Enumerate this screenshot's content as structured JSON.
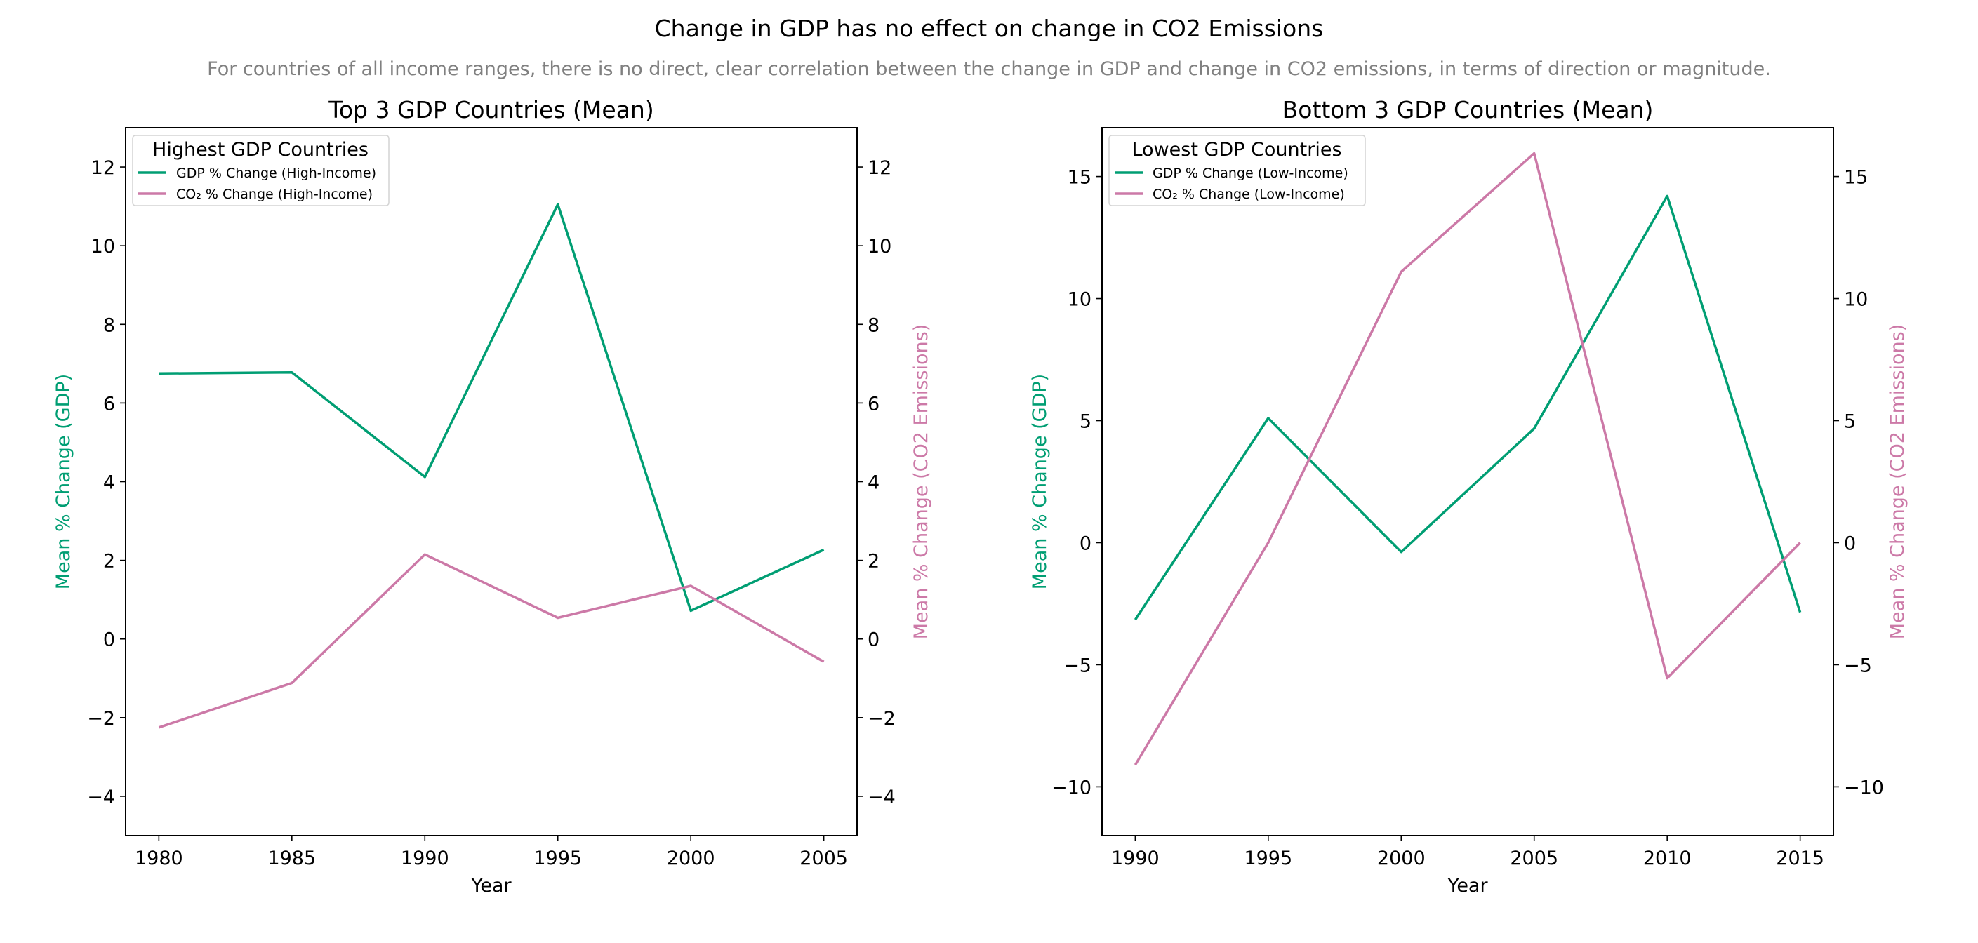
{
  "figure": {
    "title": "Change in GDP has no effect on change in CO2 Emissions",
    "subtitle": "For countries of all income ranges, there is no direct, clear correlation between the change in GDP and change in CO2 emissions, in terms of direction or magnitude."
  },
  "colors": {
    "gdp": "#009E73",
    "co2": "#CC79A7",
    "axis": "#000000",
    "subtitle": "#808080"
  },
  "chart_data": [
    {
      "type": "line",
      "title": "Top 3 GDP Countries (Mean)",
      "xlabel": "Year",
      "ylabel_left": "Mean % Change (GDP)",
      "ylabel_right": "Mean % Change (CO2 Emissions)",
      "x": [
        1980,
        1985,
        1990,
        1995,
        2000,
        2005
      ],
      "xlim": [
        1978.75,
        2006.25
      ],
      "ylim_left": [
        -5,
        13
      ],
      "ylim_right": [
        -5,
        13
      ],
      "xticks": [
        "1980",
        "1985",
        "1990",
        "1995",
        "2000",
        "2005"
      ],
      "yticks_left": [
        "−4",
        "−2",
        "0",
        "2",
        "4",
        "6",
        "8",
        "10",
        "12"
      ],
      "yticks_right": [
        "−4",
        "−2",
        "0",
        "2",
        "4",
        "6",
        "8",
        "10",
        "12"
      ],
      "grid": false,
      "legend": {
        "title": "Highest GDP Countries",
        "placement": "top-left",
        "entries": [
          "GDP % Change (High-Income)",
          "CO₂ % Change (High-Income)"
        ]
      },
      "series": [
        {
          "name": "GDP % Change (High-Income)",
          "axis": "left",
          "values": [
            6.75,
            6.78,
            4.12,
            11.05,
            0.72,
            2.27
          ]
        },
        {
          "name": "CO₂ % Change (High-Income)",
          "axis": "right",
          "values": [
            -2.25,
            -1.12,
            2.15,
            0.54,
            1.35,
            -0.58
          ]
        }
      ]
    },
    {
      "type": "line",
      "title": "Bottom 3 GDP Countries (Mean)",
      "xlabel": "Year",
      "ylabel_left": "Mean % Change (GDP)",
      "ylabel_right": "Mean % Change (CO2 Emissions)",
      "x": [
        1990,
        1995,
        2000,
        2005,
        2010,
        2015
      ],
      "xlim": [
        1988.75,
        2016.25
      ],
      "ylim_left": [
        -12,
        17
      ],
      "ylim_right": [
        -12,
        17
      ],
      "xticks": [
        "1990",
        "1995",
        "2000",
        "2005",
        "2010",
        "2015"
      ],
      "yticks_left": [
        "−10",
        "−5",
        "0",
        "5",
        "10",
        "15"
      ],
      "yticks_right": [
        "−10",
        "−5",
        "0",
        "5",
        "10",
        "15"
      ],
      "grid": false,
      "legend": {
        "title": "Lowest GDP Countries",
        "placement": "top-left",
        "entries": [
          "GDP % Change (Low-Income)",
          "CO₂ % Change (Low-Income)"
        ]
      },
      "series": [
        {
          "name": "GDP % Change (Low-Income)",
          "axis": "left",
          "values": [
            -3.15,
            5.1,
            -0.38,
            4.68,
            14.2,
            -2.85
          ]
        },
        {
          "name": "CO₂ % Change (Low-Income)",
          "axis": "right",
          "values": [
            -9.1,
            0.0,
            11.1,
            15.95,
            -5.55,
            0.0
          ]
        }
      ]
    }
  ]
}
